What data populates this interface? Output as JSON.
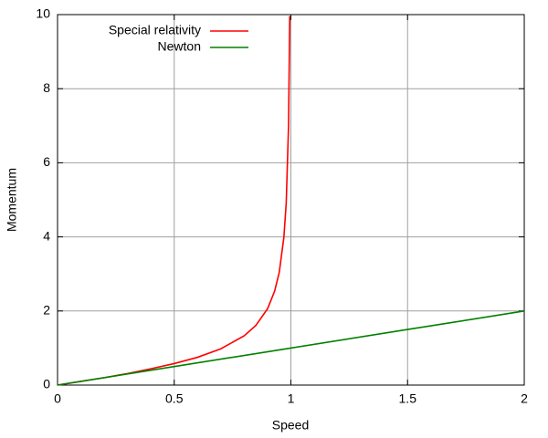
{
  "chart_data": {
    "type": "line",
    "xlabel": "Speed",
    "ylabel": "Momentum",
    "xlim": [
      0,
      2
    ],
    "ylim": [
      0,
      10
    ],
    "xticks": [
      0,
      0.5,
      1,
      1.5,
      2
    ],
    "yticks": [
      0,
      2,
      4,
      6,
      8,
      10
    ],
    "grid": true,
    "legend": "top-left",
    "series": [
      {
        "name": "Special relativity",
        "color": "#ff0000",
        "x": [
          0,
          0.1,
          0.2,
          0.3,
          0.4,
          0.5,
          0.6,
          0.7,
          0.8,
          0.85,
          0.9,
          0.93,
          0.95,
          0.97,
          0.98,
          0.99,
          0.995
        ],
        "values": [
          0,
          0.1,
          0.2,
          0.31,
          0.44,
          0.58,
          0.75,
          0.98,
          1.33,
          1.61,
          2.06,
          2.53,
          3.04,
          3.99,
          4.92,
          7.02,
          9.96
        ]
      },
      {
        "name": "Newton",
        "color": "#008000",
        "x": [
          0,
          0.5,
          1,
          1.5,
          2
        ],
        "values": [
          0,
          0.5,
          1,
          1.5,
          2
        ]
      }
    ]
  }
}
